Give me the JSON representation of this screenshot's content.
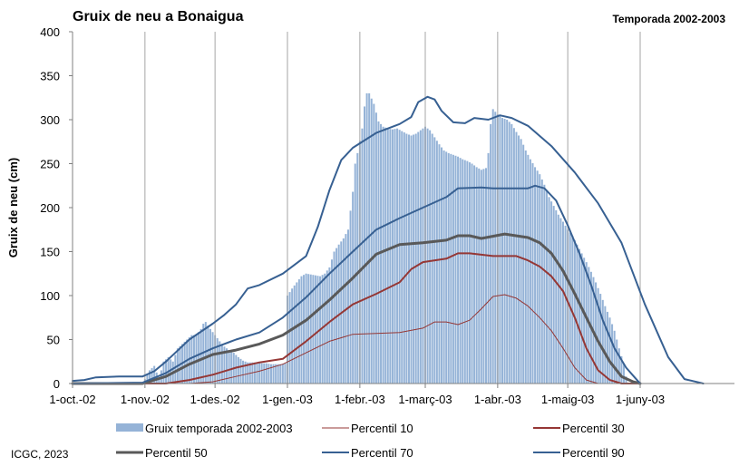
{
  "chart_data": {
    "type": "bar+line",
    "title": "Gruix de neu a Bonaigua",
    "subtitle": "Temporada 2002-2003",
    "ylabel": "Gruix de neu (cm)",
    "xlabel": "",
    "ylim": [
      0,
      400
    ],
    "yticks": [
      0,
      50,
      100,
      150,
      200,
      250,
      300,
      350,
      400
    ],
    "x_range_days": [
      0,
      243
    ],
    "x_ticks": [
      {
        "label": "1-oct.-02",
        "day": 0
      },
      {
        "label": "1-nov.-02",
        "day": 31
      },
      {
        "label": "1-des.-02",
        "day": 61
      },
      {
        "label": "1-gen.-03",
        "day": 92
      },
      {
        "label": "1-febr.-03",
        "day": 123
      },
      {
        "label": "1-març-03",
        "day": 151
      },
      {
        "label": "1-abr.-03",
        "day": 182
      },
      {
        "label": "1-maig-03",
        "day": 212
      },
      {
        "label": "1-juny-03",
        "day": 243
      }
    ],
    "grid": {
      "vertical": true,
      "horizontal": false
    },
    "legend_position": "bottom",
    "bars": {
      "name": "Gruix temporada 2002-2003",
      "color": "#95b3d7",
      "points": [
        [
          0,
          0
        ],
        [
          30,
          0
        ],
        [
          33,
          15
        ],
        [
          35,
          20
        ],
        [
          37,
          5
        ],
        [
          39,
          25
        ],
        [
          41,
          30
        ],
        [
          43,
          25
        ],
        [
          45,
          40
        ],
        [
          47,
          45
        ],
        [
          49,
          50
        ],
        [
          51,
          55
        ],
        [
          53,
          55
        ],
        [
          55,
          62
        ],
        [
          56,
          68
        ],
        [
          57,
          70
        ],
        [
          59,
          62
        ],
        [
          61,
          55
        ],
        [
          63,
          48
        ],
        [
          65,
          42
        ],
        [
          67,
          38
        ],
        [
          69,
          35
        ],
        [
          71,
          30
        ],
        [
          73,
          26
        ],
        [
          75,
          24
        ],
        [
          77,
          24
        ],
        [
          79,
          24
        ],
        [
          81,
          23
        ],
        [
          83,
          23
        ],
        [
          85,
          22
        ],
        [
          87,
          22
        ],
        [
          89,
          22
        ],
        [
          91,
          23
        ],
        [
          91.5,
          80
        ],
        [
          92,
          100
        ],
        [
          94,
          108
        ],
        [
          96,
          115
        ],
        [
          98,
          122
        ],
        [
          100,
          125
        ],
        [
          102,
          124
        ],
        [
          104,
          123
        ],
        [
          106,
          122
        ],
        [
          108,
          125
        ],
        [
          110,
          132
        ],
        [
          112,
          150
        ],
        [
          114,
          158
        ],
        [
          116,
          165
        ],
        [
          118,
          175
        ],
        [
          120,
          218
        ],
        [
          121,
          250
        ],
        [
          122,
          262
        ],
        [
          124,
          290
        ],
        [
          125,
          315
        ],
        [
          126,
          330
        ],
        [
          127,
          330
        ],
        [
          129,
          318
        ],
        [
          131,
          298
        ],
        [
          133,
          292
        ],
        [
          135,
          290
        ],
        [
          137,
          289
        ],
        [
          139,
          290
        ],
        [
          141,
          287
        ],
        [
          143,
          284
        ],
        [
          145,
          282
        ],
        [
          147,
          284
        ],
        [
          149,
          288
        ],
        [
          151,
          292
        ],
        [
          153,
          288
        ],
        [
          155,
          280
        ],
        [
          157,
          272
        ],
        [
          159,
          265
        ],
        [
          161,
          262
        ],
        [
          163,
          260
        ],
        [
          165,
          258
        ],
        [
          167,
          255
        ],
        [
          169,
          253
        ],
        [
          171,
          250
        ],
        [
          173,
          246
        ],
        [
          175,
          243
        ],
        [
          177,
          245
        ],
        [
          178,
          262
        ],
        [
          179,
          295
        ],
        [
          180,
          312
        ],
        [
          182,
          306
        ],
        [
          184,
          302
        ],
        [
          186,
          300
        ],
        [
          188,
          295
        ],
        [
          190,
          286
        ],
        [
          192,
          278
        ],
        [
          194,
          265
        ],
        [
          196,
          255
        ],
        [
          198,
          246
        ],
        [
          200,
          238
        ],
        [
          202,
          226
        ],
        [
          204,
          212
        ],
        [
          206,
          202
        ],
        [
          208,
          192
        ],
        [
          210,
          184
        ],
        [
          212,
          175
        ],
        [
          214,
          168
        ],
        [
          216,
          158
        ],
        [
          218,
          148
        ],
        [
          220,
          138
        ],
        [
          222,
          127
        ],
        [
          224,
          115
        ],
        [
          226,
          102
        ],
        [
          228,
          88
        ],
        [
          230,
          75
        ],
        [
          232,
          60
        ],
        [
          234,
          40
        ],
        [
          236,
          22
        ],
        [
          237,
          8
        ],
        [
          238,
          0
        ],
        [
          243,
          0
        ]
      ]
    },
    "series": [
      {
        "name": "Percentil 10",
        "color": "#953735",
        "width": 1,
        "points": [
          [
            0,
            0
          ],
          [
            50,
            0
          ],
          [
            60,
            2
          ],
          [
            70,
            8
          ],
          [
            80,
            14
          ],
          [
            90,
            22
          ],
          [
            100,
            35
          ],
          [
            110,
            48
          ],
          [
            120,
            56
          ],
          [
            130,
            57
          ],
          [
            140,
            58
          ],
          [
            150,
            63
          ],
          [
            155,
            70
          ],
          [
            160,
            70
          ],
          [
            165,
            67
          ],
          [
            170,
            72
          ],
          [
            175,
            85
          ],
          [
            180,
            99
          ],
          [
            185,
            101
          ],
          [
            190,
            97
          ],
          [
            195,
            88
          ],
          [
            200,
            75
          ],
          [
            205,
            60
          ],
          [
            210,
            40
          ],
          [
            215,
            18
          ],
          [
            220,
            4
          ],
          [
            225,
            0
          ],
          [
            243,
            0
          ]
        ]
      },
      {
        "name": "Percentil 30",
        "color": "#953735",
        "width": 2,
        "points": [
          [
            0,
            0
          ],
          [
            40,
            0
          ],
          [
            50,
            4
          ],
          [
            60,
            10
          ],
          [
            70,
            18
          ],
          [
            80,
            24
          ],
          [
            90,
            28
          ],
          [
            100,
            48
          ],
          [
            110,
            70
          ],
          [
            120,
            90
          ],
          [
            130,
            102
          ],
          [
            140,
            115
          ],
          [
            145,
            130
          ],
          [
            150,
            138
          ],
          [
            160,
            142
          ],
          [
            165,
            148
          ],
          [
            170,
            148
          ],
          [
            180,
            145
          ],
          [
            190,
            145
          ],
          [
            195,
            140
          ],
          [
            200,
            133
          ],
          [
            205,
            122
          ],
          [
            210,
            105
          ],
          [
            215,
            75
          ],
          [
            220,
            40
          ],
          [
            225,
            15
          ],
          [
            230,
            4
          ],
          [
            235,
            0
          ],
          [
            243,
            0
          ]
        ]
      },
      {
        "name": "Percentil 50",
        "color": "#595959",
        "width": 3,
        "points": [
          [
            0,
            0
          ],
          [
            30,
            0
          ],
          [
            40,
            8
          ],
          [
            50,
            22
          ],
          [
            60,
            33
          ],
          [
            70,
            38
          ],
          [
            80,
            45
          ],
          [
            90,
            55
          ],
          [
            100,
            72
          ],
          [
            110,
            95
          ],
          [
            120,
            120
          ],
          [
            130,
            147
          ],
          [
            140,
            158
          ],
          [
            150,
            160
          ],
          [
            160,
            163
          ],
          [
            165,
            168
          ],
          [
            170,
            168
          ],
          [
            175,
            165
          ],
          [
            185,
            170
          ],
          [
            195,
            166
          ],
          [
            200,
            160
          ],
          [
            205,
            148
          ],
          [
            210,
            128
          ],
          [
            215,
            102
          ],
          [
            220,
            75
          ],
          [
            225,
            48
          ],
          [
            230,
            25
          ],
          [
            235,
            8
          ],
          [
            240,
            2
          ],
          [
            243,
            0
          ]
        ]
      },
      {
        "name": "Percentil 70",
        "color": "#376092",
        "width": 2,
        "points": [
          [
            0,
            0
          ],
          [
            30,
            1
          ],
          [
            40,
            12
          ],
          [
            50,
            28
          ],
          [
            60,
            40
          ],
          [
            70,
            50
          ],
          [
            80,
            58
          ],
          [
            90,
            75
          ],
          [
            100,
            98
          ],
          [
            110,
            125
          ],
          [
            120,
            150
          ],
          [
            130,
            175
          ],
          [
            140,
            188
          ],
          [
            150,
            200
          ],
          [
            160,
            212
          ],
          [
            165,
            222
          ],
          [
            175,
            223
          ],
          [
            180,
            222
          ],
          [
            190,
            222
          ],
          [
            195,
            222
          ],
          [
            198,
            225
          ],
          [
            202,
            222
          ],
          [
            207,
            208
          ],
          [
            212,
            180
          ],
          [
            217,
            148
          ],
          [
            222,
            112
          ],
          [
            227,
            72
          ],
          [
            232,
            40
          ],
          [
            237,
            18
          ],
          [
            241,
            6
          ],
          [
            243,
            0
          ]
        ]
      },
      {
        "name": "Percentil 90",
        "color": "#376092",
        "width": 2,
        "points": [
          [
            0,
            3
          ],
          [
            5,
            4
          ],
          [
            10,
            7
          ],
          [
            20,
            8
          ],
          [
            30,
            8
          ],
          [
            35,
            14
          ],
          [
            40,
            25
          ],
          [
            50,
            50
          ],
          [
            60,
            68
          ],
          [
            65,
            78
          ],
          [
            70,
            90
          ],
          [
            75,
            108
          ],
          [
            80,
            112
          ],
          [
            90,
            125
          ],
          [
            100,
            145
          ],
          [
            105,
            178
          ],
          [
            110,
            220
          ],
          [
            115,
            254
          ],
          [
            120,
            268
          ],
          [
            130,
            285
          ],
          [
            140,
            295
          ],
          [
            145,
            303
          ],
          [
            148,
            320
          ],
          [
            152,
            326
          ],
          [
            155,
            323
          ],
          [
            158,
            310
          ],
          [
            163,
            297
          ],
          [
            168,
            296
          ],
          [
            172,
            302
          ],
          [
            178,
            300
          ],
          [
            183,
            305
          ],
          [
            188,
            302
          ],
          [
            195,
            293
          ],
          [
            205,
            270
          ],
          [
            215,
            240
          ],
          [
            225,
            205
          ],
          [
            235,
            160
          ],
          [
            245,
            90
          ],
          [
            255,
            30
          ],
          [
            262,
            5
          ],
          [
            270,
            0
          ]
        ]
      }
    ]
  },
  "credit": "ICGC, 2023"
}
